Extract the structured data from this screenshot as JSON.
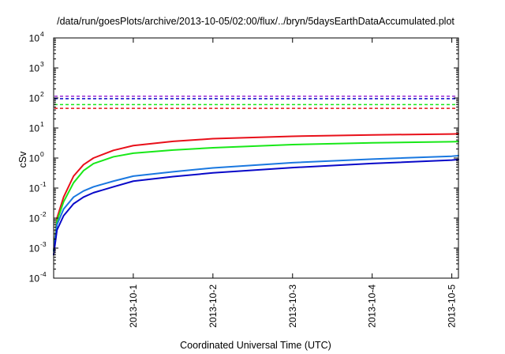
{
  "chart_data": {
    "type": "line",
    "title": "/data/run/goesPlots/archive/2013-10-05/02:00/flux/../bryn/5daysEarthDataAccumulated.plot",
    "xlabel": "Coordinated Universal Time (UTC)",
    "ylabel": "cSv",
    "y_scale": "log",
    "x_unit": "days",
    "xlim": [
      "2013-09-30T00:00",
      "2013-10-05T02:00"
    ],
    "ylim": [
      0.0001,
      10000
    ],
    "x_ticks": [
      {
        "value": "2013-10-01",
        "label": "2013-10-1"
      },
      {
        "value": "2013-10-02",
        "label": "2013-10-2"
      },
      {
        "value": "2013-10-03",
        "label": "2013-10-3"
      },
      {
        "value": "2013-10-04",
        "label": "2013-10-4"
      },
      {
        "value": "2013-10-05",
        "label": "2013-10-5"
      }
    ],
    "y_ticks": [
      {
        "value": 0.0001,
        "base": "10",
        "exp": "-4"
      },
      {
        "value": 0.001,
        "base": "10",
        "exp": "-3"
      },
      {
        "value": 0.01,
        "base": "10",
        "exp": "-2"
      },
      {
        "value": 0.1,
        "base": "10",
        "exp": "-1"
      },
      {
        "value": 1,
        "base": "10",
        "exp": "0"
      },
      {
        "value": 10,
        "base": "10",
        "exp": "1"
      },
      {
        "value": 100,
        "base": "10",
        "exp": "2"
      },
      {
        "value": 1000,
        "base": "10",
        "exp": "3"
      },
      {
        "value": 10000,
        "base": "10",
        "exp": "4"
      }
    ],
    "grid": false,
    "legend": "none",
    "series": [
      {
        "color": "#e8101a",
        "style": "solid",
        "points": [
          [
            "2013-09-30T00:00",
            0.0008
          ],
          [
            "2013-09-30T01:00",
            0.01
          ],
          [
            "2013-09-30T03:00",
            0.05
          ],
          [
            "2013-09-30T06:00",
            0.25
          ],
          [
            "2013-09-30T09:00",
            0.6
          ],
          [
            "2013-09-30T12:00",
            1.0
          ],
          [
            "2013-09-30T18:00",
            1.8
          ],
          [
            "2013-10-01T00:00",
            2.6
          ],
          [
            "2013-10-01T12:00",
            3.6
          ],
          [
            "2013-10-02T00:00",
            4.4
          ],
          [
            "2013-10-03T00:00",
            5.3
          ],
          [
            "2013-10-04T00:00",
            5.9
          ],
          [
            "2013-10-05T00:00",
            6.3
          ],
          [
            "2013-10-05T02:00",
            6.4
          ]
        ]
      },
      {
        "color": "#18e818",
        "style": "solid",
        "points": [
          [
            "2013-09-30T00:00",
            0.0008
          ],
          [
            "2013-09-30T01:00",
            0.008
          ],
          [
            "2013-09-30T03:00",
            0.035
          ],
          [
            "2013-09-30T06:00",
            0.15
          ],
          [
            "2013-09-30T09:00",
            0.38
          ],
          [
            "2013-09-30T12:00",
            0.65
          ],
          [
            "2013-09-30T18:00",
            1.1
          ],
          [
            "2013-10-01T00:00",
            1.45
          ],
          [
            "2013-10-01T12:00",
            1.85
          ],
          [
            "2013-10-02T00:00",
            2.2
          ],
          [
            "2013-10-03T00:00",
            2.8
          ],
          [
            "2013-10-04T00:00",
            3.2
          ],
          [
            "2013-10-05T00:00",
            3.5
          ],
          [
            "2013-10-05T02:00",
            3.55
          ]
        ]
      },
      {
        "color": "#1a78e0",
        "style": "solid",
        "points": [
          [
            "2013-09-30T00:00",
            0.0008
          ],
          [
            "2013-09-30T01:00",
            0.006
          ],
          [
            "2013-09-30T03:00",
            0.02
          ],
          [
            "2013-09-30T06:00",
            0.05
          ],
          [
            "2013-09-30T09:00",
            0.08
          ],
          [
            "2013-09-30T12:00",
            0.11
          ],
          [
            "2013-09-30T18:00",
            0.17
          ],
          [
            "2013-10-01T00:00",
            0.25
          ],
          [
            "2013-10-01T12:00",
            0.35
          ],
          [
            "2013-10-02T00:00",
            0.47
          ],
          [
            "2013-10-03T00:00",
            0.7
          ],
          [
            "2013-10-04T00:00",
            0.92
          ],
          [
            "2013-10-05T00:00",
            1.15
          ],
          [
            "2013-10-05T02:00",
            1.2
          ]
        ]
      },
      {
        "color": "#0808c8",
        "style": "solid",
        "points": [
          [
            "2013-09-30T00:00",
            0.0006
          ],
          [
            "2013-09-30T01:00",
            0.004
          ],
          [
            "2013-09-30T03:00",
            0.012
          ],
          [
            "2013-09-30T06:00",
            0.03
          ],
          [
            "2013-09-30T09:00",
            0.05
          ],
          [
            "2013-09-30T12:00",
            0.07
          ],
          [
            "2013-09-30T18:00",
            0.11
          ],
          [
            "2013-10-01T00:00",
            0.17
          ],
          [
            "2013-10-01T12:00",
            0.24
          ],
          [
            "2013-10-02T00:00",
            0.32
          ],
          [
            "2013-10-03T00:00",
            0.48
          ],
          [
            "2013-10-04T00:00",
            0.66
          ],
          [
            "2013-10-05T00:00",
            0.85
          ],
          [
            "2013-10-05T02:00",
            0.9
          ]
        ]
      },
      {
        "color": "#9a28d2",
        "style": "dashed",
        "constant": 115
      },
      {
        "color": "#0808c8",
        "style": "dashed",
        "constant": 95
      },
      {
        "color": "#18e818",
        "style": "dashed",
        "constant": 60
      },
      {
        "color": "#e8101a",
        "style": "dashed",
        "constant": 45
      }
    ]
  }
}
